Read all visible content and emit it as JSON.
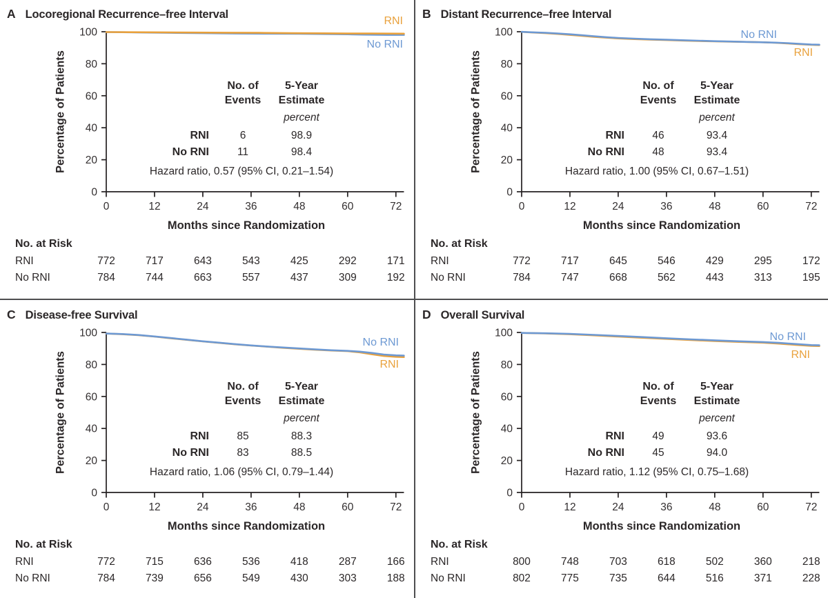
{
  "colors": {
    "rni_orange": "#E9A13C",
    "no_rni_blue": "#6D99D3",
    "axis_black": "#231f20",
    "divider_gray": "#4d4d4f",
    "background": "#ffffff"
  },
  "shared": {
    "y_axis_label": "Percentage of Patients",
    "x_axis_label": "Months since Randomization",
    "at_risk_label": "No. at Risk",
    "events_header_line1": "No. of",
    "events_header_line2": "Events",
    "estimate_header_line1": "5-Year",
    "estimate_header_line2": "Estimate",
    "units_label": "percent"
  },
  "chart_data": [
    {
      "type": "line",
      "panel": "A",
      "title": "Locoregional Recurrence–free Interval",
      "xlabel": "Months since Randomization",
      "ylabel": "Percentage of Patients",
      "xlim": [
        0,
        74
      ],
      "ylim": [
        0,
        100
      ],
      "x_ticks": [
        0,
        12,
        24,
        36,
        48,
        60,
        72
      ],
      "y_ticks": [
        0,
        20,
        40,
        60,
        80,
        100
      ],
      "grid": false,
      "legend": [
        {
          "label": "RNI",
          "color_key": "rni_orange"
        },
        {
          "label": "No RNI",
          "color_key": "no_rni_blue"
        }
      ],
      "series": [
        {
          "name": "No RNI",
          "color_key": "no_rni_blue",
          "points": [
            [
              0,
              99.8
            ],
            [
              4,
              99.7
            ],
            [
              10,
              99.5
            ],
            [
              16,
              99.3
            ],
            [
              24,
              99.1
            ],
            [
              32,
              98.9
            ],
            [
              40,
              98.8
            ],
            [
              48,
              98.7
            ],
            [
              56,
              98.5
            ],
            [
              60,
              98.4
            ],
            [
              64,
              98.2
            ],
            [
              70,
              98.0
            ],
            [
              74,
              98.0
            ]
          ]
        },
        {
          "name": "RNI",
          "color_key": "rni_orange",
          "points": [
            [
              0,
              99.8
            ],
            [
              6,
              99.7
            ],
            [
              14,
              99.6
            ],
            [
              22,
              99.5
            ],
            [
              30,
              99.4
            ],
            [
              38,
              99.3
            ],
            [
              46,
              99.1
            ],
            [
              54,
              99.0
            ],
            [
              60,
              98.9
            ],
            [
              66,
              98.9
            ],
            [
              74,
              98.8
            ]
          ]
        }
      ],
      "rows": [
        {
          "group": "RNI",
          "events": "6",
          "estimate": "98.9"
        },
        {
          "group": "No RNI",
          "events": "11",
          "estimate": "98.4"
        }
      ],
      "hazard_text": "Hazard ratio, 0.57 (95% CI, 0.21–1.54)",
      "at_risk": [
        {
          "group": "RNI",
          "counts": [
            772,
            717,
            643,
            543,
            425,
            292,
            171
          ]
        },
        {
          "group": "No RNI",
          "counts": [
            784,
            744,
            663,
            557,
            437,
            309,
            192
          ]
        }
      ]
    },
    {
      "type": "line",
      "panel": "B",
      "title": "Distant Recurrence–free Interval",
      "xlabel": "Months since Randomization",
      "ylabel": "Percentage of Patients",
      "xlim": [
        0,
        74
      ],
      "ylim": [
        0,
        100
      ],
      "x_ticks": [
        0,
        12,
        24,
        36,
        48,
        60,
        72
      ],
      "y_ticks": [
        0,
        20,
        40,
        60,
        80,
        100
      ],
      "grid": false,
      "legend": [
        {
          "label": "No RNI",
          "color_key": "no_rni_blue"
        },
        {
          "label": "RNI",
          "color_key": "rni_orange"
        }
      ],
      "series": [
        {
          "name": "RNI",
          "color_key": "rni_orange",
          "points": [
            [
              0,
              99.9
            ],
            [
              3,
              99.5
            ],
            [
              6,
              99.1
            ],
            [
              9,
              98.6
            ],
            [
              12,
              98.0
            ],
            [
              15,
              97.4
            ],
            [
              18,
              96.8
            ],
            [
              21,
              96.3
            ],
            [
              24,
              95.8
            ],
            [
              28,
              95.4
            ],
            [
              32,
              95.1
            ],
            [
              36,
              94.8
            ],
            [
              40,
              94.5
            ],
            [
              44,
              94.2
            ],
            [
              48,
              94.0
            ],
            [
              52,
              93.8
            ],
            [
              56,
              93.6
            ],
            [
              60,
              93.4
            ],
            [
              63,
              93.1
            ],
            [
              66,
              92.7
            ],
            [
              69,
              92.2
            ],
            [
              72,
              91.8
            ],
            [
              74,
              91.7
            ]
          ]
        },
        {
          "name": "No RNI",
          "color_key": "no_rni_blue",
          "points": [
            [
              0,
              99.9
            ],
            [
              3,
              99.6
            ],
            [
              6,
              99.3
            ],
            [
              9,
              98.9
            ],
            [
              12,
              98.4
            ],
            [
              15,
              97.8
            ],
            [
              18,
              97.2
            ],
            [
              21,
              96.6
            ],
            [
              24,
              96.1
            ],
            [
              28,
              95.7
            ],
            [
              32,
              95.3
            ],
            [
              36,
              95.0
            ],
            [
              40,
              94.7
            ],
            [
              44,
              94.4
            ],
            [
              48,
              94.1
            ],
            [
              52,
              93.9
            ],
            [
              56,
              93.6
            ],
            [
              60,
              93.4
            ],
            [
              63,
              93.2
            ],
            [
              66,
              92.9
            ],
            [
              69,
              92.4
            ],
            [
              72,
              92.0
            ],
            [
              74,
              91.9
            ]
          ]
        }
      ],
      "rows": [
        {
          "group": "RNI",
          "events": "46",
          "estimate": "93.4"
        },
        {
          "group": "No RNI",
          "events": "48",
          "estimate": "93.4"
        }
      ],
      "hazard_text": "Hazard ratio, 1.00 (95% CI, 0.67–1.51)",
      "at_risk": [
        {
          "group": "RNI",
          "counts": [
            772,
            717,
            645,
            546,
            429,
            295,
            172
          ]
        },
        {
          "group": "No RNI",
          "counts": [
            784,
            747,
            668,
            562,
            443,
            313,
            195
          ]
        }
      ]
    },
    {
      "type": "line",
      "panel": "C",
      "title": "Disease-free Survival",
      "xlabel": "Months since Randomization",
      "ylabel": "Percentage of Patients",
      "xlim": [
        0,
        74
      ],
      "ylim": [
        0,
        100
      ],
      "x_ticks": [
        0,
        12,
        24,
        36,
        48,
        60,
        72
      ],
      "y_ticks": [
        0,
        20,
        40,
        60,
        80,
        100
      ],
      "grid": false,
      "legend": [
        {
          "label": "No RNI",
          "color_key": "no_rni_blue"
        },
        {
          "label": "RNI",
          "color_key": "rni_orange"
        }
      ],
      "series": [
        {
          "name": "RNI",
          "color_key": "rni_orange",
          "points": [
            [
              0,
              99.3
            ],
            [
              4,
              98.9
            ],
            [
              8,
              98.3
            ],
            [
              12,
              97.4
            ],
            [
              16,
              96.4
            ],
            [
              20,
              95.4
            ],
            [
              24,
              94.4
            ],
            [
              28,
              93.5
            ],
            [
              32,
              92.6
            ],
            [
              36,
              91.8
            ],
            [
              40,
              91.1
            ],
            [
              44,
              90.4
            ],
            [
              48,
              89.8
            ],
            [
              52,
              89.2
            ],
            [
              56,
              88.7
            ],
            [
              60,
              88.3
            ],
            [
              63,
              87.6
            ],
            [
              66,
              86.4
            ],
            [
              69,
              85.3
            ],
            [
              72,
              84.8
            ],
            [
              74,
              84.6
            ]
          ]
        },
        {
          "name": "No RNI",
          "color_key": "no_rni_blue",
          "points": [
            [
              0,
              99.3
            ],
            [
              4,
              99.0
            ],
            [
              8,
              98.4
            ],
            [
              12,
              97.5
            ],
            [
              16,
              96.5
            ],
            [
              20,
              95.5
            ],
            [
              24,
              94.5
            ],
            [
              28,
              93.6
            ],
            [
              32,
              92.7
            ],
            [
              36,
              91.9
            ],
            [
              40,
              91.2
            ],
            [
              44,
              90.6
            ],
            [
              48,
              90.0
            ],
            [
              52,
              89.4
            ],
            [
              56,
              88.9
            ],
            [
              60,
              88.5
            ],
            [
              63,
              88.0
            ],
            [
              66,
              87.2
            ],
            [
              69,
              86.2
            ],
            [
              72,
              85.7
            ],
            [
              74,
              85.5
            ]
          ]
        }
      ],
      "rows": [
        {
          "group": "RNI",
          "events": "85",
          "estimate": "88.3"
        },
        {
          "group": "No RNI",
          "events": "83",
          "estimate": "88.5"
        }
      ],
      "hazard_text": "Hazard ratio, 1.06 (95% CI, 0.79–1.44)",
      "at_risk": [
        {
          "group": "RNI",
          "counts": [
            772,
            715,
            636,
            536,
            418,
            287,
            166
          ]
        },
        {
          "group": "No RNI",
          "counts": [
            784,
            739,
            656,
            549,
            430,
            303,
            188
          ]
        }
      ]
    },
    {
      "type": "line",
      "panel": "D",
      "title": "Overall Survival",
      "xlabel": "Months since Randomization",
      "ylabel": "Percentage of Patients",
      "xlim": [
        0,
        74
      ],
      "ylim": [
        0,
        100
      ],
      "x_ticks": [
        0,
        12,
        24,
        36,
        48,
        60,
        72
      ],
      "y_ticks": [
        0,
        20,
        40,
        60,
        80,
        100
      ],
      "grid": false,
      "legend": [
        {
          "label": "No RNI",
          "color_key": "no_rni_blue"
        },
        {
          "label": "RNI",
          "color_key": "rni_orange"
        }
      ],
      "series": [
        {
          "name": "RNI",
          "color_key": "rni_orange",
          "points": [
            [
              0,
              99.7
            ],
            [
              6,
              99.4
            ],
            [
              12,
              98.9
            ],
            [
              18,
              98.2
            ],
            [
              24,
              97.4
            ],
            [
              30,
              96.7
            ],
            [
              36,
              96.0
            ],
            [
              42,
              95.3
            ],
            [
              48,
              94.6
            ],
            [
              54,
              94.1
            ],
            [
              60,
              93.6
            ],
            [
              64,
              93.0
            ],
            [
              68,
              92.3
            ],
            [
              72,
              91.6
            ],
            [
              74,
              91.5
            ]
          ]
        },
        {
          "name": "No RNI",
          "color_key": "no_rni_blue",
          "points": [
            [
              0,
              99.7
            ],
            [
              6,
              99.5
            ],
            [
              12,
              99.1
            ],
            [
              18,
              98.5
            ],
            [
              24,
              97.8
            ],
            [
              30,
              97.1
            ],
            [
              36,
              96.4
            ],
            [
              42,
              95.7
            ],
            [
              48,
              95.1
            ],
            [
              54,
              94.5
            ],
            [
              60,
              94.0
            ],
            [
              64,
              93.5
            ],
            [
              68,
              92.8
            ],
            [
              72,
              92.1
            ],
            [
              74,
              92.0
            ]
          ]
        }
      ],
      "rows": [
        {
          "group": "RNI",
          "events": "49",
          "estimate": "93.6"
        },
        {
          "group": "No RNI",
          "events": "45",
          "estimate": "94.0"
        }
      ],
      "hazard_text": "Hazard ratio, 1.12 (95% CI, 0.75–1.68)",
      "at_risk": [
        {
          "group": "RNI",
          "counts": [
            800,
            748,
            703,
            618,
            502,
            360,
            218
          ]
        },
        {
          "group": "No RNI",
          "counts": [
            802,
            775,
            735,
            644,
            516,
            371,
            228
          ]
        }
      ]
    }
  ],
  "legend_layout_note": "labels positioned at right edge of each plot"
}
